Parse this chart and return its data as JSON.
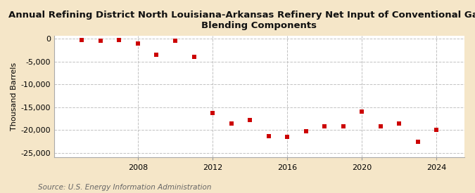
{
  "title": "Annual Refining District North Louisiana-Arkansas Refinery Net Input of Conventional Gasoline\nBlending Components",
  "ylabel": "Thousand Barrels",
  "source": "Source: U.S. Energy Information Administration",
  "background_color": "#f5e6c8",
  "plot_background_color": "#ffffff",
  "marker_color": "#cc0000",
  "grid_color": "#bbbbbb",
  "years": [
    2005,
    2006,
    2007,
    2008,
    2009,
    2010,
    2011,
    2012,
    2013,
    2014,
    2015,
    2016,
    2017,
    2018,
    2019,
    2020,
    2021,
    2022,
    2023,
    2024
  ],
  "values": [
    -300,
    -400,
    -300,
    -1000,
    -3500,
    -500,
    -4000,
    -16200,
    -18500,
    -17800,
    -21300,
    -21500,
    -20200,
    -19200,
    -19200,
    -16000,
    -19200,
    -18500,
    -22500,
    -20000
  ],
  "xlim": [
    2003.5,
    2025.5
  ],
  "ylim": [
    -26000,
    600
  ],
  "yticks": [
    0,
    -5000,
    -10000,
    -15000,
    -20000,
    -25000
  ],
  "xticks": [
    2008,
    2012,
    2016,
    2020,
    2024
  ],
  "title_fontsize": 9.5,
  "axis_fontsize": 8,
  "source_fontsize": 7.5
}
